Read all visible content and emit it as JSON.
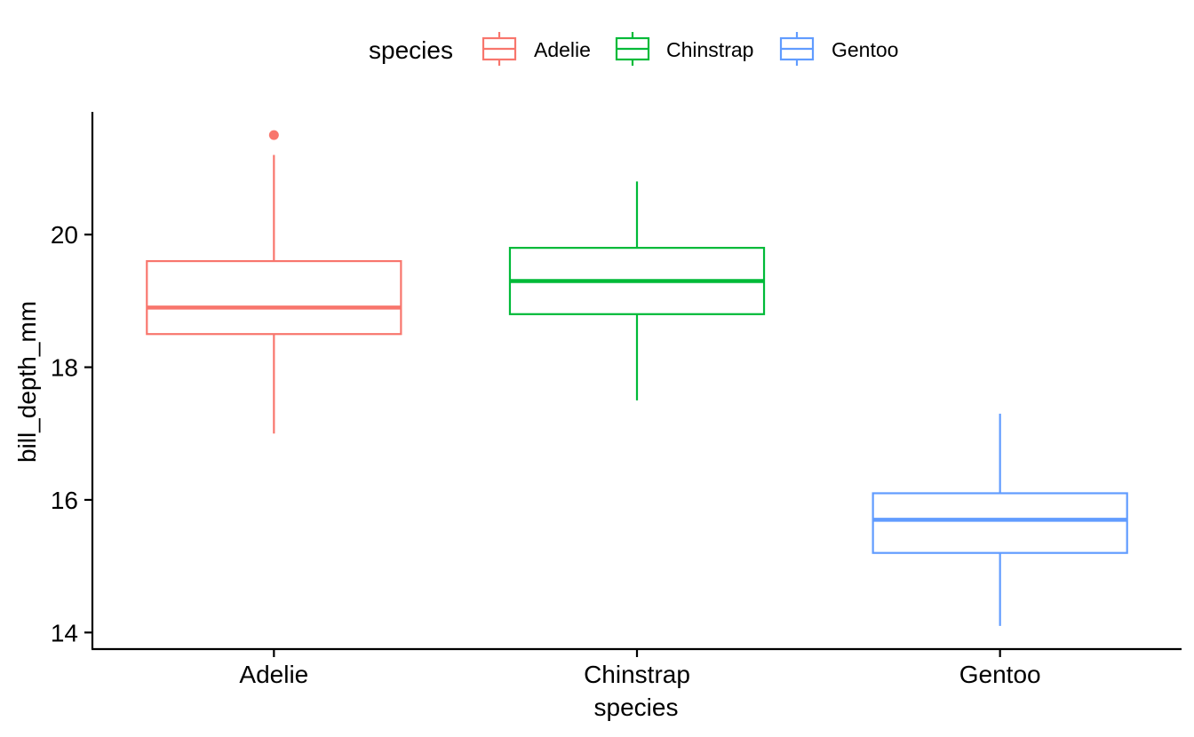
{
  "chart_data": {
    "type": "boxplot",
    "title": "",
    "xlabel": "species",
    "ylabel": "bill_depth_mm",
    "ylim": [
      13.75,
      21.85
    ],
    "yticks": [
      14,
      16,
      18,
      20
    ],
    "grid": false,
    "legend": {
      "title": "species",
      "placement": "top",
      "entries": [
        "Adelie",
        "Chinstrap",
        "Gentoo"
      ]
    },
    "categories": [
      "Adelie",
      "Chinstrap",
      "Gentoo"
    ],
    "series": [
      {
        "name": "Adelie",
        "color": "#F8766D",
        "whisker_low": 17.0,
        "q1": 18.5,
        "median": 18.9,
        "q3": 19.6,
        "whisker_high": 21.2,
        "outliers": [
          21.5
        ]
      },
      {
        "name": "Chinstrap",
        "color": "#00BA38",
        "whisker_low": 17.5,
        "q1": 18.8,
        "median": 19.3,
        "q3": 19.8,
        "whisker_high": 20.8,
        "outliers": []
      },
      {
        "name": "Gentoo",
        "color": "#619CFF",
        "whisker_low": 14.1,
        "q1": 15.2,
        "median": 15.7,
        "q3": 16.1,
        "whisker_high": 17.3,
        "outliers": []
      }
    ]
  }
}
